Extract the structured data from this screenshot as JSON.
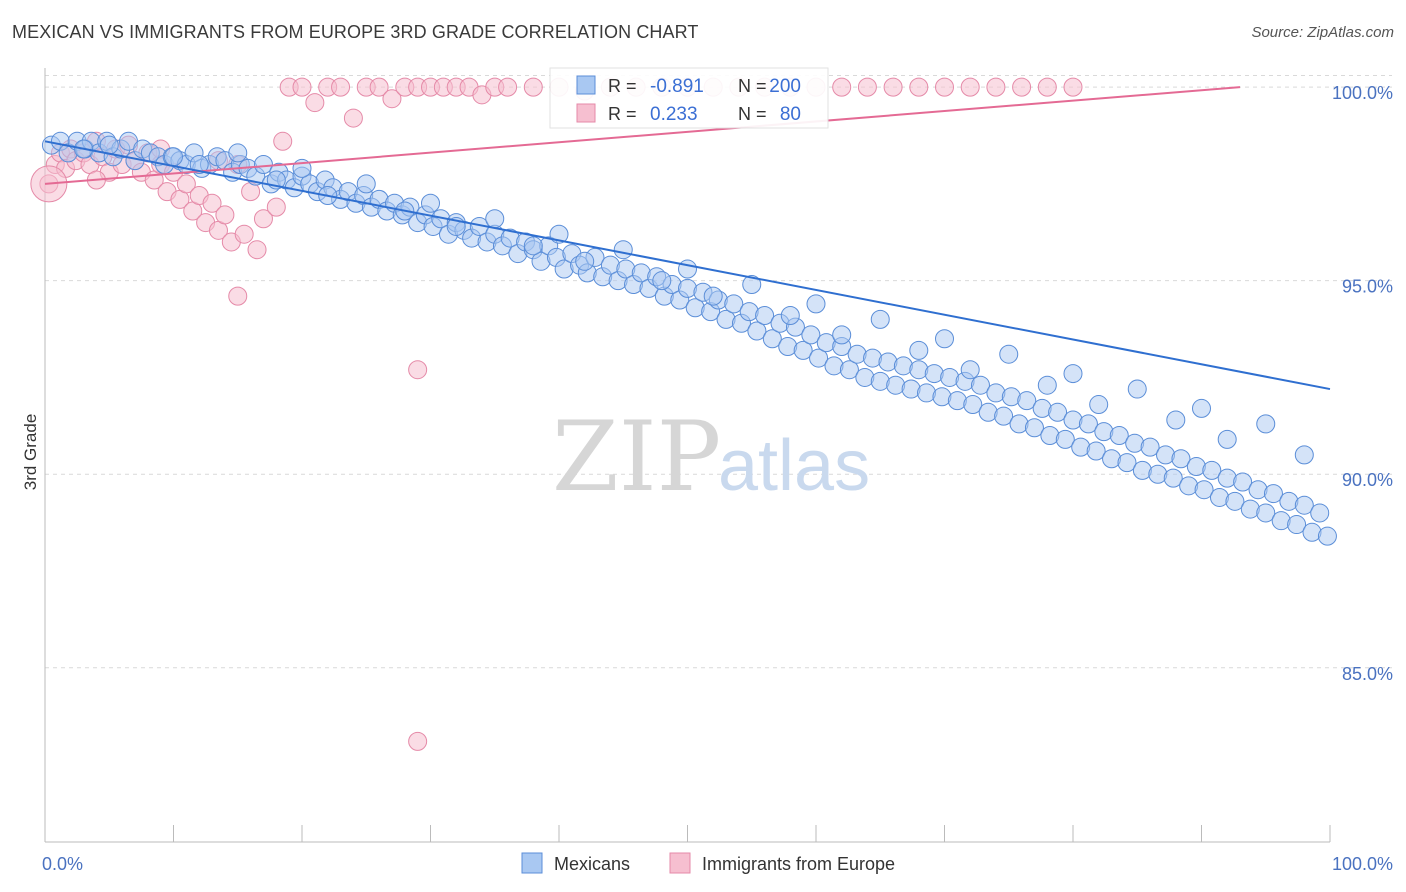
{
  "title": "MEXICAN VS IMMIGRANTS FROM EUROPE 3RD GRADE CORRELATION CHART",
  "source": "Source: ZipAtlas.com",
  "watermark": {
    "zip": "ZIP",
    "atlas": "atlas"
  },
  "legend_box": {
    "r_label": "R =",
    "n_label": "N =",
    "rows": [
      {
        "r": "-0.891",
        "n": "200"
      },
      {
        "r": "0.233",
        "n": "80"
      }
    ]
  },
  "bottom_legend": [
    "Mexicans",
    "Immigrants from Europe"
  ],
  "colors": {
    "blue_fill": "#a9c8f2",
    "blue_stroke": "#5b8ed8",
    "blue_line": "#2f6fd0",
    "pink_fill": "#f6bfd0",
    "pink_stroke": "#e58aa8",
    "pink_line": "#e46a94",
    "grid": "#d9d9d9",
    "tick_text": "#4a72c0"
  },
  "chart_data": {
    "type": "scatter",
    "ylabel": "3rd Grade",
    "xlim": [
      0,
      100
    ],
    "ylim": [
      80.5,
      100.7
    ],
    "x_tick_labels": [
      "0.0%",
      "100.0%"
    ],
    "y_ticks": [
      85,
      90,
      95,
      100
    ],
    "y_tick_labels": [
      "85.0%",
      "90.0%",
      "95.0%",
      "100.0%"
    ],
    "grid": "horizontal dashed",
    "series": [
      {
        "name": "Mexicans",
        "color": "#a9c8f2",
        "trend": {
          "x": [
            0,
            100
          ],
          "y": [
            98.6,
            92.2
          ]
        },
        "points": [
          [
            0.5,
            98.5
          ],
          [
            1.2,
            98.6
          ],
          [
            1.8,
            98.3
          ],
          [
            2.5,
            98.6
          ],
          [
            3.1,
            98.4
          ],
          [
            3.6,
            98.6
          ],
          [
            4.2,
            98.3
          ],
          [
            4.8,
            98.6
          ],
          [
            5.3,
            98.2
          ],
          [
            5.9,
            98.4
          ],
          [
            6.5,
            98.6
          ],
          [
            7.0,
            98.1
          ],
          [
            7.6,
            98.4
          ],
          [
            8.2,
            98.3
          ],
          [
            8.8,
            98.2
          ],
          [
            9.3,
            98.0
          ],
          [
            9.9,
            98.2
          ],
          [
            10.5,
            98.1
          ],
          [
            11.0,
            98.0
          ],
          [
            11.6,
            98.3
          ],
          [
            12.2,
            97.9
          ],
          [
            12.8,
            98.0
          ],
          [
            13.4,
            98.2
          ],
          [
            14.0,
            98.1
          ],
          [
            14.6,
            97.8
          ],
          [
            15.2,
            98.0
          ],
          [
            15.8,
            97.9
          ],
          [
            16.4,
            97.7
          ],
          [
            17.0,
            98.0
          ],
          [
            17.6,
            97.5
          ],
          [
            18.2,
            97.8
          ],
          [
            18.8,
            97.6
          ],
          [
            19.4,
            97.4
          ],
          [
            20.0,
            97.7
          ],
          [
            20.6,
            97.5
          ],
          [
            21.2,
            97.3
          ],
          [
            21.8,
            97.6
          ],
          [
            22.4,
            97.4
          ],
          [
            23.0,
            97.1
          ],
          [
            23.6,
            97.3
          ],
          [
            24.2,
            97.0
          ],
          [
            24.8,
            97.2
          ],
          [
            25.4,
            96.9
          ],
          [
            26.0,
            97.1
          ],
          [
            26.6,
            96.8
          ],
          [
            27.2,
            97.0
          ],
          [
            27.8,
            96.7
          ],
          [
            28.4,
            96.9
          ],
          [
            29.0,
            96.5
          ],
          [
            29.6,
            96.7
          ],
          [
            30.2,
            96.4
          ],
          [
            30.8,
            96.6
          ],
          [
            31.4,
            96.2
          ],
          [
            32.0,
            96.5
          ],
          [
            32.6,
            96.3
          ],
          [
            33.2,
            96.1
          ],
          [
            33.8,
            96.4
          ],
          [
            34.4,
            96.0
          ],
          [
            35.0,
            96.2
          ],
          [
            35.6,
            95.9
          ],
          [
            36.2,
            96.1
          ],
          [
            36.8,
            95.7
          ],
          [
            37.4,
            96.0
          ],
          [
            38.0,
            95.8
          ],
          [
            38.6,
            95.5
          ],
          [
            39.2,
            95.9
          ],
          [
            39.8,
            95.6
          ],
          [
            40.4,
            95.3
          ],
          [
            41.0,
            95.7
          ],
          [
            41.6,
            95.4
          ],
          [
            42.2,
            95.2
          ],
          [
            42.8,
            95.6
          ],
          [
            43.4,
            95.1
          ],
          [
            44.0,
            95.4
          ],
          [
            44.6,
            95.0
          ],
          [
            45.2,
            95.3
          ],
          [
            45.8,
            94.9
          ],
          [
            46.4,
            95.2
          ],
          [
            47.0,
            94.8
          ],
          [
            47.6,
            95.1
          ],
          [
            48.2,
            94.6
          ],
          [
            48.8,
            94.9
          ],
          [
            49.4,
            94.5
          ],
          [
            50.0,
            94.8
          ],
          [
            50.6,
            94.3
          ],
          [
            51.2,
            94.7
          ],
          [
            51.8,
            94.2
          ],
          [
            52.4,
            94.5
          ],
          [
            53.0,
            94.0
          ],
          [
            53.6,
            94.4
          ],
          [
            54.2,
            93.9
          ],
          [
            54.8,
            94.2
          ],
          [
            55.4,
            93.7
          ],
          [
            56.0,
            94.1
          ],
          [
            56.6,
            93.5
          ],
          [
            57.2,
            93.9
          ],
          [
            57.8,
            93.3
          ],
          [
            58.4,
            93.8
          ],
          [
            59.0,
            93.2
          ],
          [
            59.6,
            93.6
          ],
          [
            60.2,
            93.0
          ],
          [
            60.8,
            93.4
          ],
          [
            61.4,
            92.8
          ],
          [
            62.0,
            93.3
          ],
          [
            62.6,
            92.7
          ],
          [
            63.2,
            93.1
          ],
          [
            63.8,
            92.5
          ],
          [
            64.4,
            93.0
          ],
          [
            65.0,
            92.4
          ],
          [
            65.6,
            92.9
          ],
          [
            66.2,
            92.3
          ],
          [
            66.8,
            92.8
          ],
          [
            67.4,
            92.2
          ],
          [
            68.0,
            92.7
          ],
          [
            68.6,
            92.1
          ],
          [
            69.2,
            92.6
          ],
          [
            69.8,
            92.0
          ],
          [
            70.4,
            92.5
          ],
          [
            71.0,
            91.9
          ],
          [
            71.6,
            92.4
          ],
          [
            72.2,
            91.8
          ],
          [
            72.8,
            92.3
          ],
          [
            73.4,
            91.6
          ],
          [
            74.0,
            92.1
          ],
          [
            74.6,
            91.5
          ],
          [
            75.2,
            92.0
          ],
          [
            75.8,
            91.3
          ],
          [
            76.4,
            91.9
          ],
          [
            77.0,
            91.2
          ],
          [
            77.6,
            91.7
          ],
          [
            78.2,
            91.0
          ],
          [
            78.8,
            91.6
          ],
          [
            79.4,
            90.9
          ],
          [
            80.0,
            91.4
          ],
          [
            80.6,
            90.7
          ],
          [
            81.2,
            91.3
          ],
          [
            81.8,
            90.6
          ],
          [
            82.4,
            91.1
          ],
          [
            83.0,
            90.4
          ],
          [
            83.6,
            91.0
          ],
          [
            84.2,
            90.3
          ],
          [
            84.8,
            90.8
          ],
          [
            85.4,
            90.1
          ],
          [
            86.0,
            90.7
          ],
          [
            86.6,
            90.0
          ],
          [
            87.2,
            90.5
          ],
          [
            87.8,
            89.9
          ],
          [
            88.4,
            90.4
          ],
          [
            89.0,
            89.7
          ],
          [
            89.6,
            90.2
          ],
          [
            90.2,
            89.6
          ],
          [
            90.8,
            90.1
          ],
          [
            91.4,
            89.4
          ],
          [
            92.0,
            89.9
          ],
          [
            92.6,
            89.3
          ],
          [
            93.2,
            89.8
          ],
          [
            93.8,
            89.1
          ],
          [
            94.4,
            89.6
          ],
          [
            95.0,
            89.0
          ],
          [
            95.6,
            89.5
          ],
          [
            96.2,
            88.8
          ],
          [
            96.8,
            89.3
          ],
          [
            97.4,
            88.7
          ],
          [
            98.0,
            89.2
          ],
          [
            98.6,
            88.5
          ],
          [
            99.2,
            89.0
          ],
          [
            99.8,
            88.4
          ],
          [
            15,
            98.3
          ],
          [
            25,
            97.5
          ],
          [
            35,
            96.6
          ],
          [
            45,
            95.8
          ],
          [
            55,
            94.9
          ],
          [
            65,
            94.0
          ],
          [
            75,
            93.1
          ],
          [
            85,
            92.2
          ],
          [
            95,
            91.3
          ],
          [
            20,
            97.9
          ],
          [
            30,
            97.0
          ],
          [
            40,
            96.2
          ],
          [
            50,
            95.3
          ],
          [
            60,
            94.4
          ],
          [
            70,
            93.5
          ],
          [
            80,
            92.6
          ],
          [
            90,
            91.7
          ],
          [
            5,
            98.5
          ],
          [
            10,
            98.2
          ],
          [
            12,
            98.0
          ],
          [
            18,
            97.6
          ],
          [
            22,
            97.2
          ],
          [
            28,
            96.8
          ],
          [
            32,
            96.4
          ],
          [
            38,
            95.9
          ],
          [
            42,
            95.5
          ],
          [
            48,
            95.0
          ],
          [
            52,
            94.6
          ],
          [
            58,
            94.1
          ],
          [
            62,
            93.6
          ],
          [
            68,
            93.2
          ],
          [
            72,
            92.7
          ],
          [
            78,
            92.3
          ],
          [
            82,
            91.8
          ],
          [
            88,
            91.4
          ],
          [
            92,
            90.9
          ],
          [
            98,
            90.5
          ],
          [
            3,
            98.4
          ]
        ]
      },
      {
        "name": "Immigrants from Europe",
        "color": "#f6bfd0",
        "trend": {
          "x": [
            0,
            93
          ],
          "y": [
            97.5,
            100.0
          ]
        },
        "points": [
          [
            0.3,
            97.5
          ],
          [
            0.8,
            98.0
          ],
          [
            1.2,
            98.3
          ],
          [
            1.6,
            97.9
          ],
          [
            2.0,
            98.4
          ],
          [
            2.4,
            98.1
          ],
          [
            3.0,
            98.3
          ],
          [
            3.5,
            98.0
          ],
          [
            4.0,
            98.6
          ],
          [
            4.5,
            98.2
          ],
          [
            5.0,
            97.8
          ],
          [
            5.5,
            98.4
          ],
          [
            6.0,
            98.0
          ],
          [
            6.5,
            98.5
          ],
          [
            7.0,
            98.1
          ],
          [
            7.5,
            97.8
          ],
          [
            8.0,
            98.3
          ],
          [
            8.5,
            97.6
          ],
          [
            9.0,
            98.0
          ],
          [
            9.5,
            97.3
          ],
          [
            10.0,
            97.8
          ],
          [
            10.5,
            97.1
          ],
          [
            11.0,
            97.5
          ],
          [
            11.5,
            96.8
          ],
          [
            12.0,
            97.2
          ],
          [
            12.5,
            96.5
          ],
          [
            13.0,
            97.0
          ],
          [
            13.5,
            96.3
          ],
          [
            14.0,
            96.7
          ],
          [
            14.5,
            96.0
          ],
          [
            15.0,
            98.0
          ],
          [
            15.5,
            96.2
          ],
          [
            16.0,
            97.3
          ],
          [
            16.5,
            95.8
          ],
          [
            17.0,
            96.6
          ],
          [
            18.0,
            96.9
          ],
          [
            19.0,
            100.0
          ],
          [
            20.0,
            100.0
          ],
          [
            21.0,
            99.6
          ],
          [
            22.0,
            100.0
          ],
          [
            23.0,
            100.0
          ],
          [
            24.0,
            99.2
          ],
          [
            25.0,
            100.0
          ],
          [
            26.0,
            100.0
          ],
          [
            27.0,
            99.7
          ],
          [
            28.0,
            100.0
          ],
          [
            29.0,
            100.0
          ],
          [
            30.0,
            100.0
          ],
          [
            31.0,
            100.0
          ],
          [
            32.0,
            100.0
          ],
          [
            33.0,
            100.0
          ],
          [
            34.0,
            99.8
          ],
          [
            35.0,
            100.0
          ],
          [
            36.0,
            100.0
          ],
          [
            38.0,
            100.0
          ],
          [
            40.0,
            100.0
          ],
          [
            42.0,
            99.9
          ],
          [
            44.0,
            100.0
          ],
          [
            46.0,
            100.0
          ],
          [
            48.0,
            100.0
          ],
          [
            50.0,
            100.0
          ],
          [
            52.0,
            100.0
          ],
          [
            54.0,
            100.0
          ],
          [
            56.0,
            100.0
          ],
          [
            58.0,
            100.0
          ],
          [
            60.0,
            100.0
          ],
          [
            62.0,
            100.0
          ],
          [
            64.0,
            100.0
          ],
          [
            66.0,
            100.0
          ],
          [
            68.0,
            100.0
          ],
          [
            70.0,
            100.0
          ],
          [
            72.0,
            100.0
          ],
          [
            74.0,
            100.0
          ],
          [
            76.0,
            100.0
          ],
          [
            78.0,
            100.0
          ],
          [
            80.0,
            100.0
          ],
          [
            18.5,
            98.6
          ],
          [
            13.5,
            98.1
          ],
          [
            9.0,
            98.4
          ],
          [
            4.0,
            97.6
          ],
          [
            15.0,
            94.6
          ],
          [
            29.0,
            92.7
          ],
          [
            29.0,
            83.1
          ]
        ]
      }
    ]
  }
}
